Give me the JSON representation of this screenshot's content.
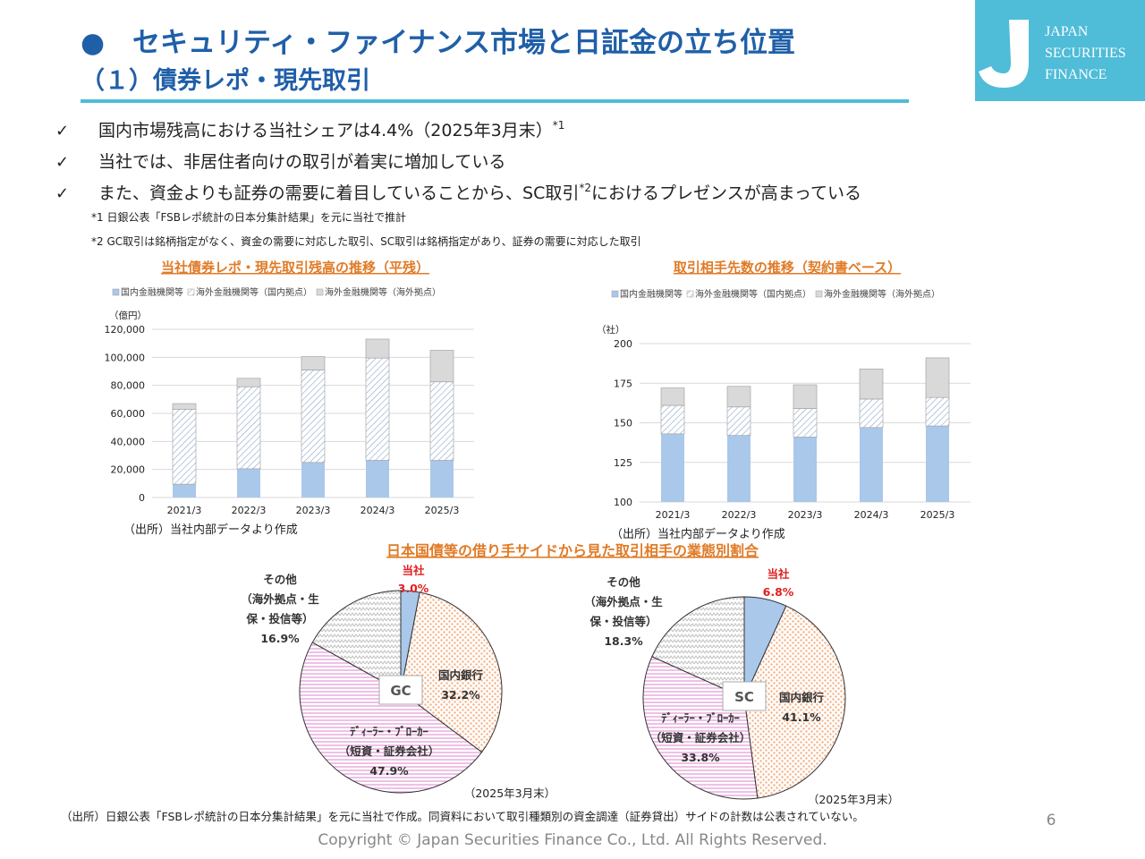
{
  "header": {
    "title": "●　セキュリティ・ファイナンス市場と日証金の立ち位置",
    "subtitle": "（１）債券レポ・現先取引"
  },
  "logo": {
    "lines": [
      "JAPAN",
      "SECURITIES",
      "FINANCE"
    ]
  },
  "bullets": [
    {
      "mark": "✓",
      "parts": [
        "国内市場残高における当社シェアは4.4%（2025年3月末）",
        "*1"
      ]
    },
    {
      "mark": "✓",
      "parts": [
        "当社では、非居住者向けの取引が着実に増加している"
      ]
    },
    {
      "mark": "✓",
      "parts": [
        "また、資金よりも証券の需要に着目していることから、SC取引",
        "*2",
        "におけるプレゼンスが高まっている"
      ]
    }
  ],
  "notes": [
    "*1 日銀公表「FSBレポ統計の日本分集計結果」を元に当社で推計",
    "*2 GC取引は銘柄指定がなく、資金の需要に対応した取引、SC取引は銘柄指定があり、証券の需要に対応した取引"
  ],
  "pie_section_title": "日本国債等の借り手サイドから見た取引相手の業態別割合",
  "chart_data": [
    {
      "type": "bar",
      "title": "当社債券レポ・現先取引残高の推移（平残）",
      "y_unit": "（億円）",
      "source": "（出所）当社内部データより作成",
      "categories": [
        "2021/3",
        "2022/3",
        "2023/3",
        "2024/3",
        "2025/3"
      ],
      "series": [
        {
          "name": "国内金融機関等",
          "color": "#a9c8ea",
          "values": [
            9500,
            20500,
            25000,
            26500,
            26500
          ]
        },
        {
          "name": "海外金融機関等（国内拠点）",
          "color": "#8aa6c8",
          "hatch": true,
          "values": [
            53500,
            58500,
            66000,
            73000,
            56000
          ]
        },
        {
          "name": "海外金融機関等（海外拠点）",
          "color": "#d9d9d9",
          "values": [
            4000,
            6000,
            9500,
            13500,
            22500
          ]
        }
      ],
      "ylim": [
        0,
        120000
      ],
      "yticks": [
        0,
        {
          "value": 20000,
          "label": "20,000"
        },
        {
          "value": 40000,
          "label": "40,000"
        },
        {
          "value": 60000,
          "label": "60,000"
        },
        {
          "value": 80000,
          "label": "80,000"
        },
        {
          "value": 100000,
          "label": "100,000"
        },
        {
          "value": 120000,
          "label": "120,000"
        }
      ],
      "grid": true
    },
    {
      "type": "bar",
      "title": "取引相手先数の推移（契約書ベース）",
      "y_unit": "（社）",
      "source": "（出所）当社内部データより作成",
      "categories": [
        "2021/3",
        "2022/3",
        "2023/3",
        "2024/3",
        "2025/3"
      ],
      "series": [
        {
          "name": "国内金融機関等",
          "color": "#a9c8ea",
          "values": [
            143,
            142,
            141,
            147,
            148
          ]
        },
        {
          "name": "海外金融機関等（国内拠点）",
          "color": "#8aa6c8",
          "hatch": true,
          "values": [
            18,
            18,
            18,
            18,
            18
          ]
        },
        {
          "name": "海外金融機関等（海外拠点）",
          "color": "#d9d9d9",
          "values": [
            11,
            13,
            15,
            19,
            25
          ]
        }
      ],
      "ylim": [
        100,
        200
      ],
      "yticks": [
        100,
        125,
        150,
        175,
        200
      ],
      "grid": true
    },
    {
      "type": "pie",
      "center_label": "GC",
      "note": "（2025年3月末）",
      "labels": [
        [
          "当社"
        ],
        [
          "国内銀行"
        ],
        [
          "ﾃﾞｨｰﾗｰ・ﾌﾞﾛｰｶｰ",
          "（短資・証券会社）"
        ],
        [
          "その他",
          "（海外拠点・生",
          "保・投信等）"
        ]
      ],
      "values": [
        3.0,
        32.2,
        47.9,
        16.9
      ],
      "value_labels": [
        "3.0%",
        "32.2%",
        "47.9%",
        "16.9%"
      ],
      "colors": [
        "#a9c8ea",
        "#f4b183",
        "#e6a0d8",
        "#bfbfbf"
      ]
    },
    {
      "type": "pie",
      "center_label": "SC",
      "note": "（2025年3月末）",
      "labels": [
        [
          "当社"
        ],
        [
          "国内銀行"
        ],
        [
          "ﾃﾞｨｰﾗｰ・ﾌﾞﾛｰｶｰ",
          "（短資・証券会社）"
        ],
        [
          "その他",
          "（海外拠点・生",
          "保・投信等）"
        ]
      ],
      "values": [
        6.8,
        41.1,
        33.8,
        18.3
      ],
      "value_labels": [
        "6.8%",
        "41.1%",
        "33.8%",
        "18.3%"
      ],
      "colors": [
        "#a9c8ea",
        "#f4b183",
        "#e6a0d8",
        "#bfbfbf"
      ]
    }
  ],
  "footer": {
    "source": "（出所）日銀公表「FSBレポ統計の日本分集計結果」を元に当社で作成。同資料において取引種類別の資金調達（証券貸出）サイドの計数は公表されていない。",
    "copyright": "Copyright © Japan Securities Finance Co., Ltd. All Rights Reserved.",
    "page": "6"
  }
}
